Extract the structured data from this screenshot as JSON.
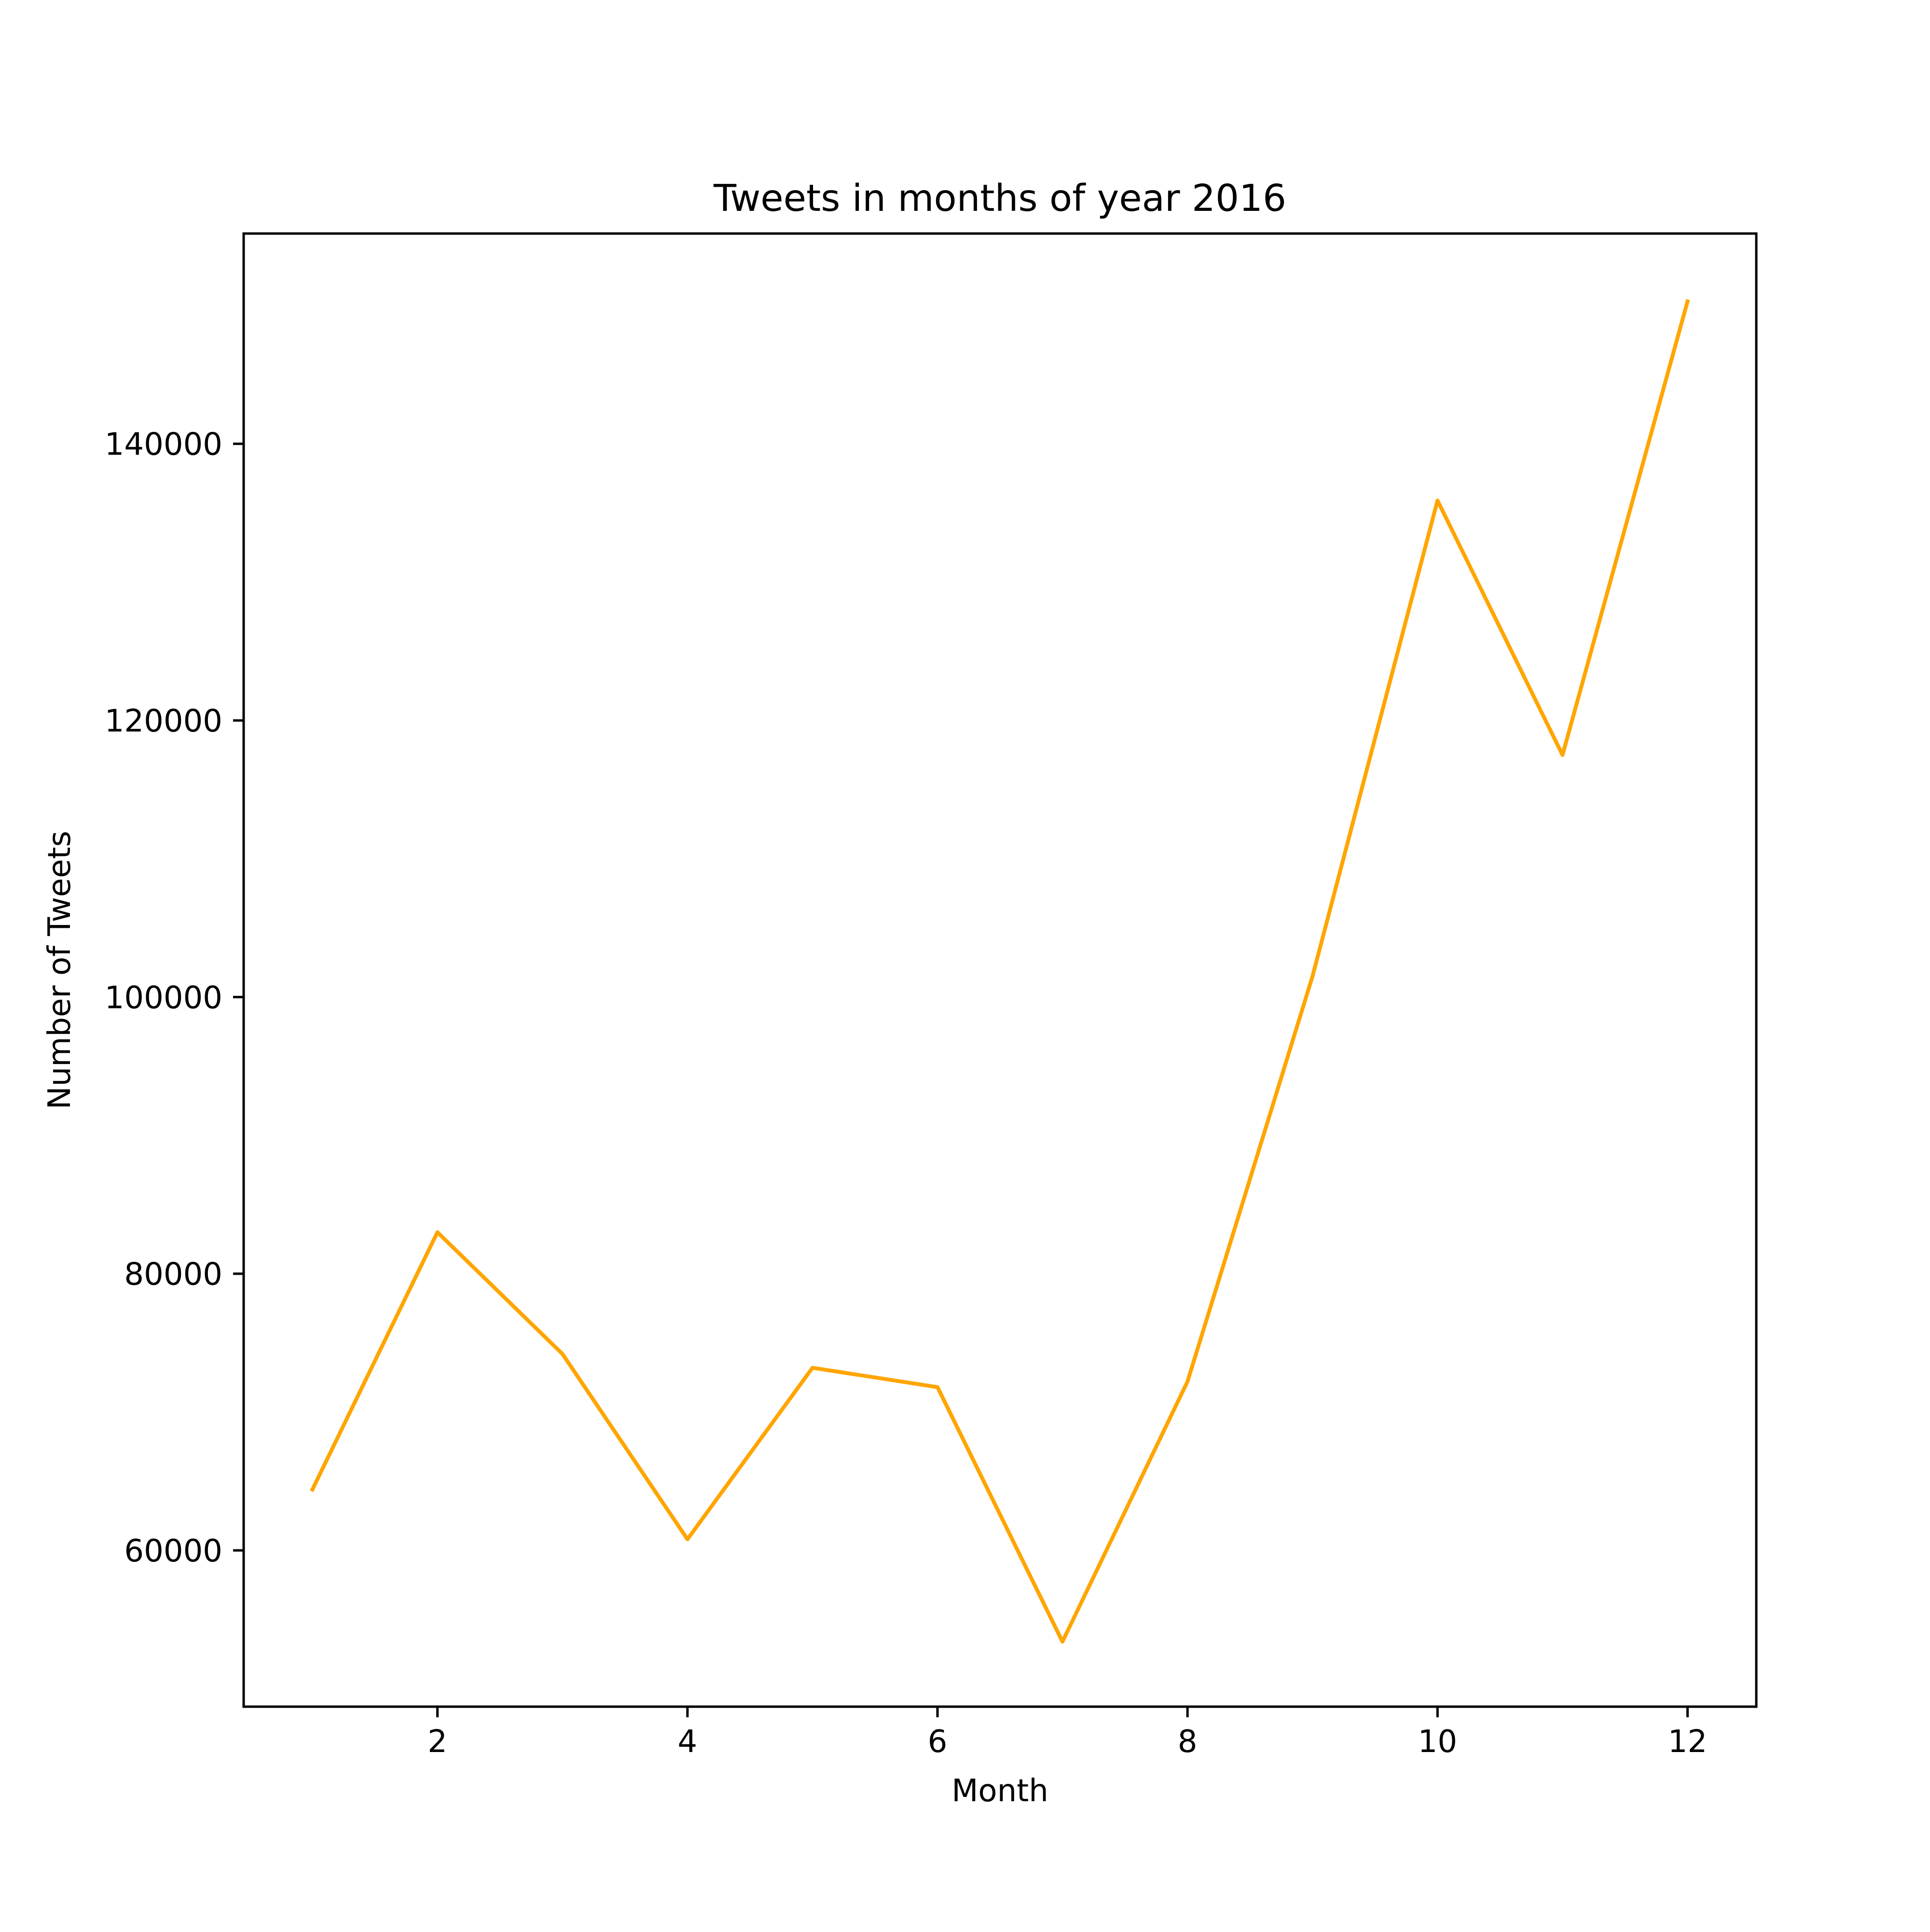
{
  "chart_data": {
    "type": "line",
    "title": "Tweets in months of year 2016",
    "xlabel": "Month",
    "ylabel": "Number of Tweets",
    "xlim": [
      0.45,
      12.55
    ],
    "ylim": [
      48700,
      155200
    ],
    "xticks": [
      2,
      4,
      6,
      8,
      10,
      12
    ],
    "yticks": [
      60000,
      80000,
      100000,
      120000,
      140000
    ],
    "grid": false,
    "series": [
      {
        "color": "#ffa500",
        "x": [
          1,
          2,
          3,
          4,
          5,
          6,
          7,
          8,
          9,
          10,
          11,
          12
        ],
        "y": [
          64400,
          83000,
          74200,
          60800,
          73200,
          71800,
          53400,
          72200,
          101500,
          135900,
          117500,
          150300
        ]
      }
    ]
  }
}
